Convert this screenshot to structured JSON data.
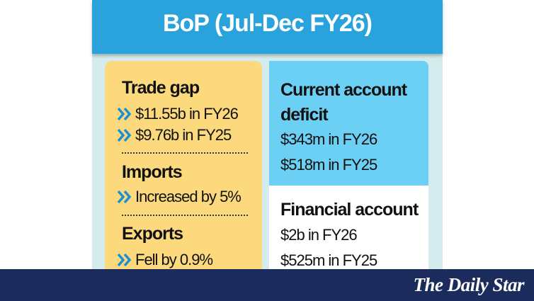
{
  "header": {
    "title": "BoP (Jul-Dec FY26)"
  },
  "left_panel": {
    "sections": [
      {
        "heading": "Trade gap",
        "items": [
          "$11.55b in FY26",
          "$9.76b in FY25"
        ]
      },
      {
        "heading": "Imports",
        "items": [
          "Increased by 5%"
        ]
      },
      {
        "heading": "Exports",
        "items": [
          "Fell by 0.9%"
        ]
      }
    ]
  },
  "right_panel": {
    "sections": [
      {
        "heading": "Current account deficit",
        "items": [
          "$343m in FY26",
          "$518m in FY25"
        ]
      },
      {
        "heading": "Financial account",
        "items": [
          "$2b in FY26",
          "$525m in FY25"
        ]
      }
    ]
  },
  "footer": {
    "logo": "The Daily Star"
  }
}
